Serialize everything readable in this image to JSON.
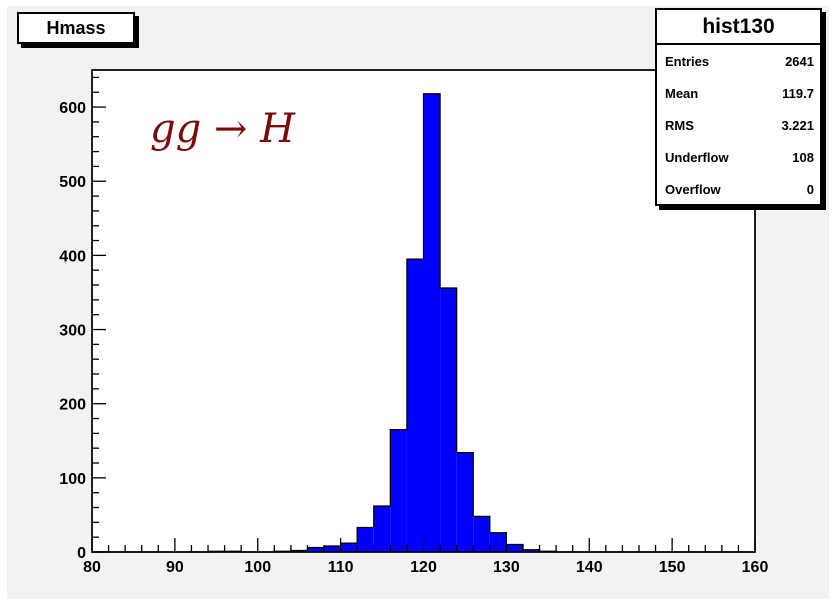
{
  "chart_data": {
    "type": "histogram",
    "title": "Hmass",
    "xlim": [
      80,
      160
    ],
    "ylim": [
      0,
      650
    ],
    "bin_width": 2,
    "bin_edges_start": 80,
    "bins": [
      {
        "x": 81,
        "y": 0
      },
      {
        "x": 83,
        "y": 0
      },
      {
        "x": 85,
        "y": 0
      },
      {
        "x": 87,
        "y": 0
      },
      {
        "x": 89,
        "y": 0
      },
      {
        "x": 91,
        "y": 0
      },
      {
        "x": 93,
        "y": 0
      },
      {
        "x": 95,
        "y": 1
      },
      {
        "x": 97,
        "y": 1
      },
      {
        "x": 99,
        "y": 0
      },
      {
        "x": 101,
        "y": 0
      },
      {
        "x": 103,
        "y": 1
      },
      {
        "x": 105,
        "y": 2
      },
      {
        "x": 107,
        "y": 6
      },
      {
        "x": 109,
        "y": 8
      },
      {
        "x": 111,
        "y": 12
      },
      {
        "x": 113,
        "y": 33
      },
      {
        "x": 115,
        "y": 62
      },
      {
        "x": 117,
        "y": 165
      },
      {
        "x": 119,
        "y": 395
      },
      {
        "x": 121,
        "y": 618
      },
      {
        "x": 123,
        "y": 356
      },
      {
        "x": 125,
        "y": 134
      },
      {
        "x": 127,
        "y": 48
      },
      {
        "x": 129,
        "y": 26
      },
      {
        "x": 131,
        "y": 10
      },
      {
        "x": 133,
        "y": 3
      },
      {
        "x": 135,
        "y": 1
      },
      {
        "x": 137,
        "y": 0
      },
      {
        "x": 139,
        "y": 0
      },
      {
        "x": 141,
        "y": 0
      },
      {
        "x": 143,
        "y": 0
      },
      {
        "x": 145,
        "y": 0
      },
      {
        "x": 147,
        "y": 0
      },
      {
        "x": 149,
        "y": 0
      },
      {
        "x": 151,
        "y": 0
      },
      {
        "x": 153,
        "y": 0
      },
      {
        "x": 155,
        "y": 0
      },
      {
        "x": 157,
        "y": 0
      },
      {
        "x": 159,
        "y": 0
      }
    ],
    "x_ticks": [
      80,
      90,
      100,
      110,
      120,
      130,
      140,
      150,
      160
    ],
    "y_ticks": [
      0,
      100,
      200,
      300,
      400,
      500,
      600
    ],
    "annotation": "gg → H",
    "fill_color": "#0000ff",
    "line_color": "#000000",
    "annotation_color": "#7a0b0b",
    "stats_box": {
      "title": "hist130",
      "rows": [
        {
          "label": "Entries",
          "value": "2641"
        },
        {
          "label": "Mean",
          "value": "119.7"
        },
        {
          "label": "RMS",
          "value": "3.221"
        },
        {
          "label": "Underflow",
          "value": "108"
        },
        {
          "label": "Overflow",
          "value": "0"
        }
      ]
    }
  }
}
